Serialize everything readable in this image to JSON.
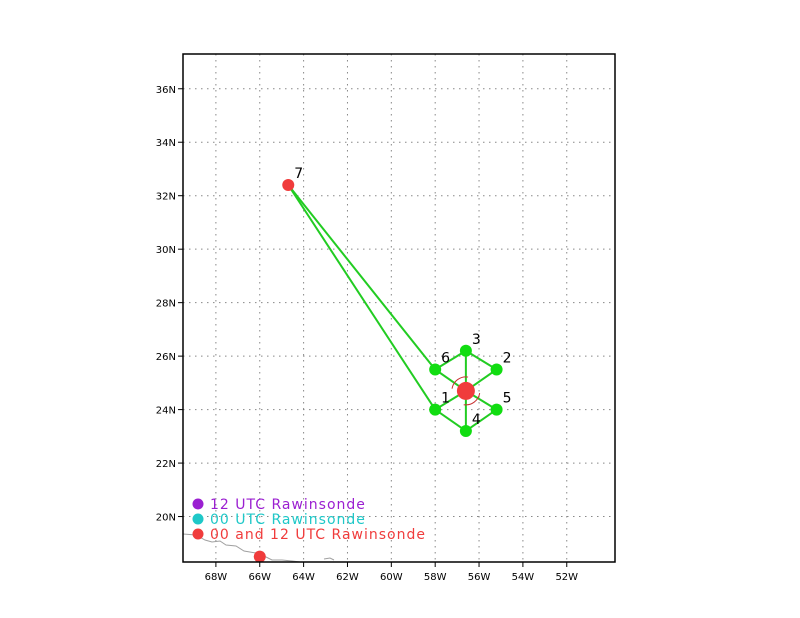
{
  "colors": {
    "legend_12utc": "#9b1fd1",
    "legend_00utc": "#1fc8c8",
    "legend_both": "#f03c3c",
    "station_point": "#11dd11",
    "connector_line": "#22cc22",
    "storm_center": "#f03c3c",
    "coastline": "#a0a0a0",
    "grid": "#888888"
  },
  "axes": {
    "lon_range": [
      -69.5,
      -49.8
    ],
    "lat_range": [
      18.3,
      37.3
    ],
    "x_ticks": [
      {
        "lon": -68,
        "label": "68W"
      },
      {
        "lon": -66,
        "label": "66W"
      },
      {
        "lon": -64,
        "label": "64W"
      },
      {
        "lon": -62,
        "label": "62W"
      },
      {
        "lon": -60,
        "label": "60W"
      },
      {
        "lon": -58,
        "label": "58W"
      },
      {
        "lon": -56,
        "label": "56W"
      },
      {
        "lon": -54,
        "label": "54W"
      },
      {
        "lon": -52,
        "label": "52W"
      }
    ],
    "y_ticks": [
      {
        "lat": 20,
        "label": "20N"
      },
      {
        "lat": 22,
        "label": "22N"
      },
      {
        "lat": 24,
        "label": "24N"
      },
      {
        "lat": 26,
        "label": "26N"
      },
      {
        "lat": 28,
        "label": "28N"
      },
      {
        "lat": 30,
        "label": "30N"
      },
      {
        "lat": 32,
        "label": "32N"
      },
      {
        "lat": 34,
        "label": "34N"
      },
      {
        "lat": 36,
        "label": "36N"
      }
    ],
    "grid": true
  },
  "storm_center": {
    "lon": -56.6,
    "lat": 24.7
  },
  "stations": [
    {
      "label": "1",
      "lon": -58.0,
      "lat": 24.0,
      "color": "#11dd11"
    },
    {
      "label": "2",
      "lon": -55.2,
      "lat": 25.5,
      "color": "#11dd11"
    },
    {
      "label": "3",
      "lon": -56.6,
      "lat": 26.2,
      "color": "#11dd11"
    },
    {
      "label": "4",
      "lon": -56.6,
      "lat": 23.2,
      "color": "#11dd11"
    },
    {
      "label": "5",
      "lon": -55.2,
      "lat": 24.0,
      "color": "#11dd11"
    },
    {
      "label": "6",
      "lon": -58.0,
      "lat": 25.5,
      "color": "#11dd11"
    },
    {
      "label": "7",
      "lon": -64.7,
      "lat": 32.4,
      "color": "#f03c3c"
    }
  ],
  "extra_points": [
    {
      "lon": -66.0,
      "lat": 18.5,
      "color": "#f03c3c"
    }
  ],
  "connections": [
    [
      "center",
      "1"
    ],
    [
      "center",
      "2"
    ],
    [
      "center",
      "3"
    ],
    [
      "center",
      "4"
    ],
    [
      "center",
      "5"
    ],
    [
      "center",
      "6"
    ],
    [
      "1",
      "7"
    ],
    [
      "6",
      "7"
    ],
    [
      "6",
      "3"
    ],
    [
      "3",
      "2"
    ],
    [
      "1",
      "4"
    ],
    [
      "4",
      "5"
    ]
  ],
  "legend": [
    {
      "label": "12 UTC Rawinsonde",
      "color": "#9b1fd1"
    },
    {
      "label": "00 UTC Rawinsonde",
      "color": "#1fc8c8"
    },
    {
      "label": "00 and 12 UTC Rawinsonde",
      "color": "#f03c3c"
    }
  ]
}
